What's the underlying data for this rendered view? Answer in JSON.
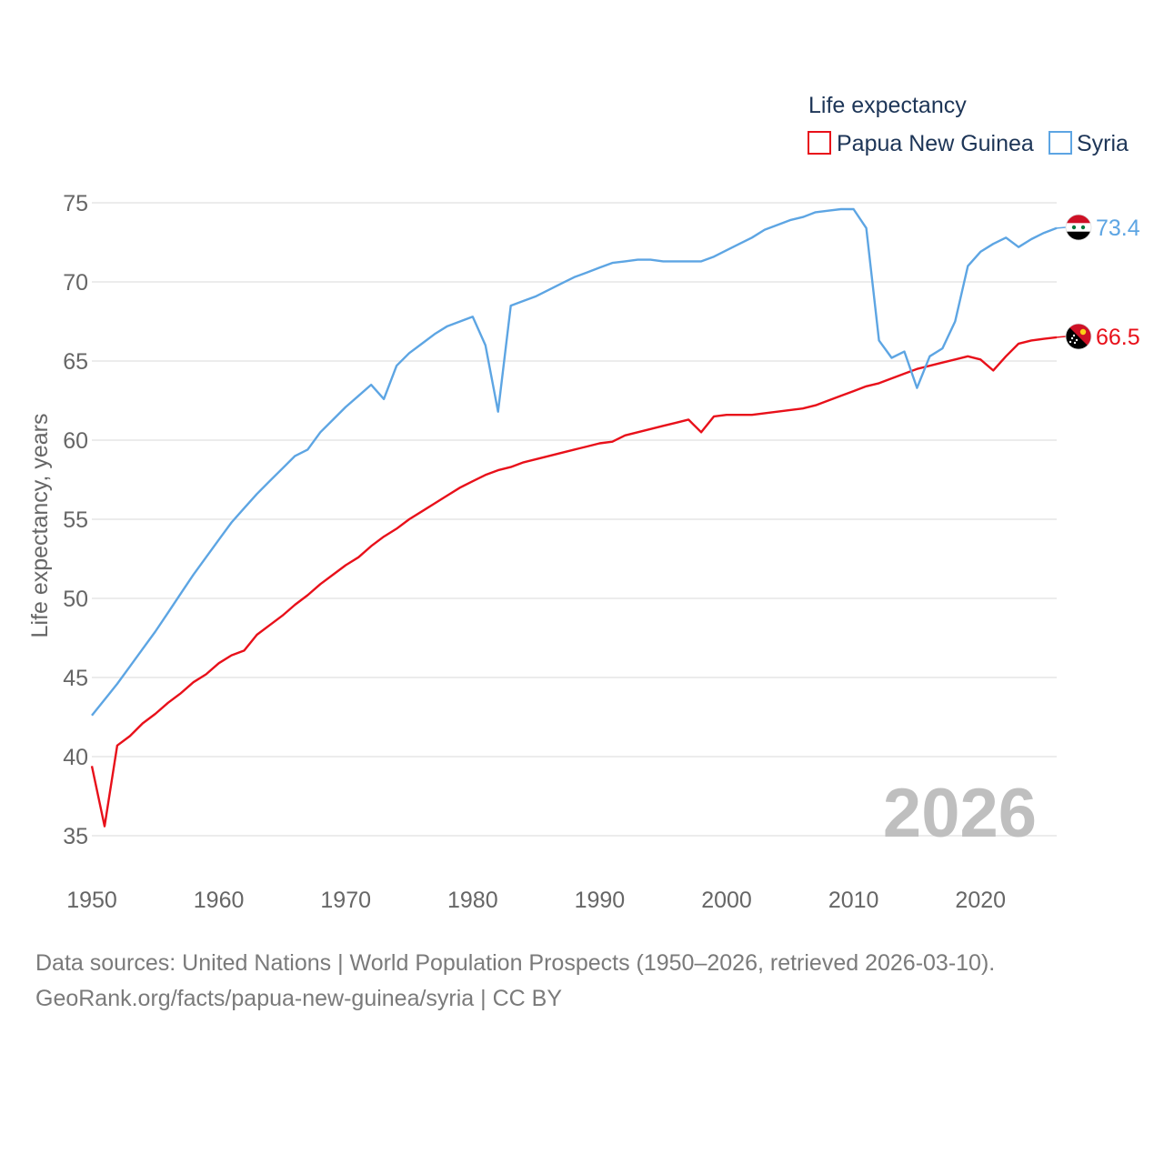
{
  "chart_data": {
    "type": "line",
    "title": "Life expectancy",
    "ylabel": "Life expectancy, years",
    "xlabel": "",
    "xlim": [
      1950,
      2026
    ],
    "ylim": [
      33,
      75
    ],
    "yticks": [
      35,
      40,
      45,
      50,
      55,
      60,
      65,
      70,
      75
    ],
    "xticks": [
      1950,
      1960,
      1970,
      1980,
      1990,
      2000,
      2010,
      2020
    ],
    "current_year": "2026",
    "legend_position": "top-right",
    "series": [
      {
        "name": "Papua New Guinea",
        "color": "#e8101a",
        "end_label": "66.5",
        "x": [
          1950,
          1951,
          1952,
          1953,
          1954,
          1955,
          1956,
          1957,
          1958,
          1959,
          1960,
          1961,
          1962,
          1963,
          1964,
          1965,
          1966,
          1967,
          1968,
          1969,
          1970,
          1971,
          1972,
          1973,
          1974,
          1975,
          1976,
          1977,
          1978,
          1979,
          1980,
          1981,
          1982,
          1983,
          1984,
          1985,
          1986,
          1987,
          1988,
          1989,
          1990,
          1991,
          1992,
          1993,
          1994,
          1995,
          1996,
          1997,
          1998,
          1999,
          2000,
          2001,
          2002,
          2003,
          2004,
          2005,
          2006,
          2007,
          2008,
          2009,
          2010,
          2011,
          2012,
          2013,
          2014,
          2015,
          2016,
          2017,
          2018,
          2019,
          2020,
          2021,
          2022,
          2023,
          2024,
          2025,
          2026
        ],
        "values": [
          39.4,
          35.6,
          40.7,
          41.3,
          42.1,
          42.7,
          43.4,
          44.0,
          44.7,
          45.2,
          45.9,
          46.4,
          46.7,
          47.7,
          48.3,
          48.9,
          49.6,
          50.2,
          50.9,
          51.5,
          52.1,
          52.6,
          53.3,
          53.9,
          54.4,
          55.0,
          55.5,
          56.0,
          56.5,
          57.0,
          57.4,
          57.8,
          58.1,
          58.3,
          58.6,
          58.8,
          59.0,
          59.2,
          59.4,
          59.6,
          59.8,
          59.9,
          60.3,
          60.5,
          60.7,
          60.9,
          61.1,
          61.3,
          60.5,
          61.5,
          61.6,
          61.6,
          61.6,
          61.7,
          61.8,
          61.9,
          62.0,
          62.2,
          62.5,
          62.8,
          63.1,
          63.4,
          63.6,
          63.9,
          64.2,
          64.5,
          64.7,
          64.9,
          65.1,
          65.3,
          65.1,
          64.4,
          65.3,
          66.1,
          66.3,
          66.4,
          66.5
        ]
      },
      {
        "name": "Syria",
        "color": "#5da5e3",
        "end_label": "73.4",
        "x": [
          1950,
          1951,
          1952,
          1953,
          1954,
          1955,
          1956,
          1957,
          1958,
          1959,
          1960,
          1961,
          1962,
          1963,
          1964,
          1965,
          1966,
          1967,
          1968,
          1969,
          1970,
          1971,
          1972,
          1973,
          1974,
          1975,
          1976,
          1977,
          1978,
          1979,
          1980,
          1981,
          1982,
          1983,
          1984,
          1985,
          1986,
          1987,
          1988,
          1989,
          1990,
          1991,
          1992,
          1993,
          1994,
          1995,
          1996,
          1997,
          1998,
          1999,
          2000,
          2001,
          2002,
          2003,
          2004,
          2005,
          2006,
          2007,
          2008,
          2009,
          2010,
          2011,
          2012,
          2013,
          2014,
          2015,
          2016,
          2017,
          2018,
          2019,
          2020,
          2021,
          2022,
          2023,
          2024,
          2025,
          2026
        ],
        "values": [
          42.6,
          43.6,
          44.6,
          45.7,
          46.8,
          47.9,
          49.1,
          50.3,
          51.5,
          52.6,
          53.7,
          54.8,
          55.7,
          56.6,
          57.4,
          58.2,
          59.0,
          59.4,
          60.5,
          61.3,
          62.1,
          62.8,
          63.5,
          62.6,
          64.7,
          65.5,
          66.1,
          66.7,
          67.2,
          67.5,
          67.8,
          66.0,
          61.8,
          68.5,
          68.8,
          69.1,
          69.5,
          69.9,
          70.3,
          70.6,
          70.9,
          71.2,
          71.3,
          71.4,
          71.4,
          71.3,
          71.3,
          71.3,
          71.3,
          71.6,
          72.0,
          72.4,
          72.8,
          73.3,
          73.6,
          73.9,
          74.1,
          74.4,
          74.5,
          74.6,
          74.6,
          73.4,
          66.3,
          65.2,
          65.6,
          63.3,
          65.3,
          65.8,
          67.5,
          71.0,
          71.9,
          72.4,
          72.8,
          72.2,
          72.7,
          73.1,
          73.4
        ]
      }
    ]
  },
  "footer": {
    "line1": "Data sources: United Nations | World Population Prospects (1950–2026, retrieved 2026-03-10).",
    "line2": "GeoRank.org/facts/papua-new-guinea/syria | CC BY"
  }
}
